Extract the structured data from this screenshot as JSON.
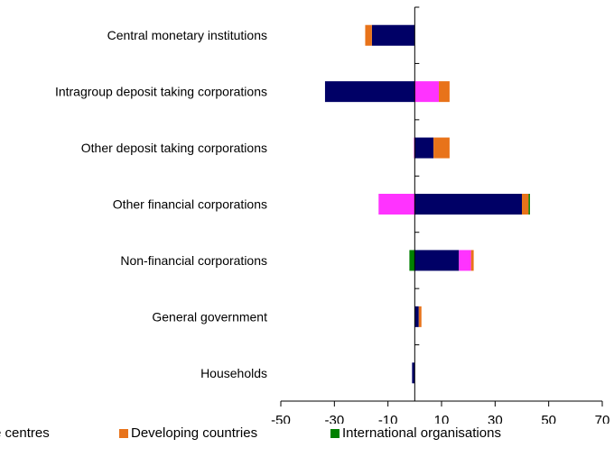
{
  "chart_data": {
    "type": "bar",
    "orientation": "horizontal",
    "stacked": true,
    "categories": [
      "Central monetary institutions",
      "Intragroup deposit taking corporations",
      "Other deposit taking corporations",
      "Other financial corporations",
      "Non-financial corporations",
      "General government",
      "Households"
    ],
    "series": [
      {
        "name": "Offshore centres",
        "color": "#000066",
        "values": [
          -16,
          -33.5,
          7,
          40,
          16.5,
          1.5,
          -1
        ]
      },
      {
        "name": "",
        "color": "#ff33ff",
        "values": [
          0,
          9,
          -0.3,
          -13.5,
          4.5,
          0,
          0
        ]
      },
      {
        "name": "Developing countries",
        "color": "#e8731a",
        "values": [
          -2.5,
          4,
          6,
          2.5,
          1,
          1,
          0
        ]
      },
      {
        "name": "International organisations",
        "color": "#008000",
        "values": [
          0,
          0,
          0,
          0.5,
          -2,
          0,
          0
        ]
      }
    ],
    "xlim": [
      -50,
      70
    ],
    "xticks": [
      -50,
      -30,
      -10,
      10,
      30,
      50,
      70
    ],
    "xtick_labels": [
      "-50",
      "-30",
      "-10",
      "10",
      "30",
      "50",
      "70"
    ],
    "grid": false,
    "legend": {
      "placement": "bottom",
      "entries": [
        {
          "label": "re centres",
          "color": "#000066"
        },
        {
          "label": "Developing countries",
          "color": "#e8731a"
        },
        {
          "label": "International organisations",
          "color": "#008000"
        }
      ]
    }
  }
}
